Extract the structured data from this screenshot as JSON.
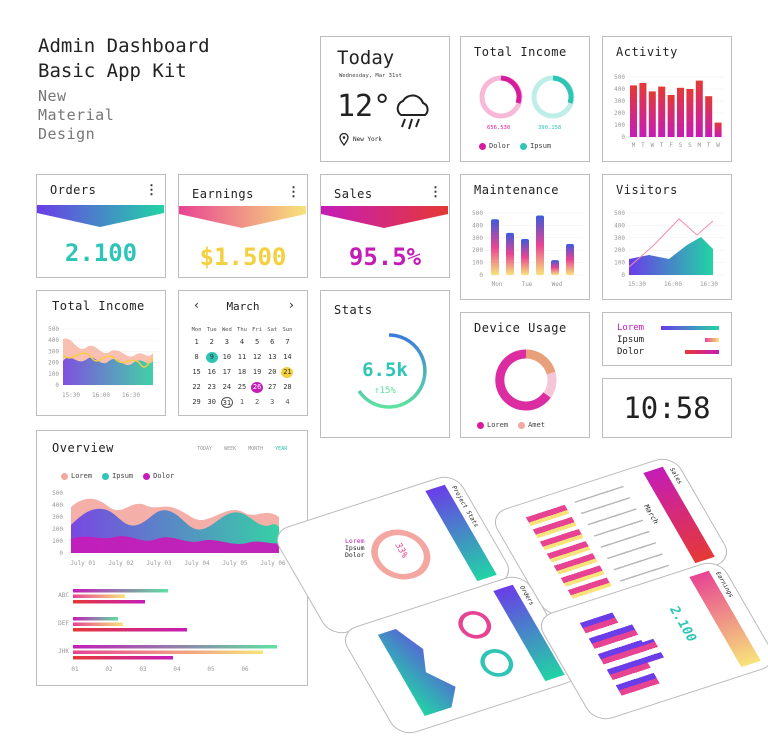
{
  "header": {
    "title_line1": "Admin Dashboard",
    "title_line2": "Basic App Kit",
    "sub_line1": "New",
    "sub_line2": "Material",
    "sub_line3": "Design"
  },
  "today": {
    "title": "Today",
    "date": "Wednesday, Mar 31st",
    "temp": "12°",
    "location": "New York"
  },
  "total_income_top": {
    "title": "Total Income",
    "value1": "656.530",
    "value2": "390.158",
    "legend": [
      "Dolor",
      "Ipsum"
    ]
  },
  "activity": {
    "title": "Activity",
    "y_ticks": [
      "500",
      "400",
      "300",
      "200",
      "100",
      "0"
    ],
    "days": [
      "M",
      "T",
      "W",
      "T",
      "F",
      "S",
      "S",
      "M",
      "T",
      "W"
    ],
    "values": [
      430,
      450,
      380,
      420,
      350,
      410,
      400,
      470,
      340,
      120
    ]
  },
  "orders": {
    "title": "Orders",
    "value": "2.100"
  },
  "earnings": {
    "title": "Earnings",
    "value": "$1.500"
  },
  "sales": {
    "title": "Sales",
    "value": "95.5%"
  },
  "maintenance": {
    "title": "Maintenance",
    "y_ticks": [
      "500",
      "400",
      "300",
      "200",
      "100",
      "0"
    ],
    "x_labels": [
      "Mon",
      "Tue",
      "Wed"
    ],
    "values": [
      450,
      340,
      290,
      480,
      120,
      250
    ]
  },
  "visitors": {
    "title": "Visitors",
    "y_ticks": [
      "500",
      "400",
      "300",
      "200",
      "100",
      "0"
    ],
    "x_labels": [
      "15:30",
      "16:00",
      "16:30"
    ]
  },
  "total_income_mid": {
    "title": "Total Income",
    "y_ticks": [
      "500",
      "400",
      "300",
      "200",
      "100",
      "0"
    ],
    "x_labels": [
      "15:30",
      "16:00",
      "16:30"
    ]
  },
  "calendar": {
    "month": "March",
    "weekdays": [
      "Mon",
      "Tue",
      "Wed",
      "Thu",
      "Fri",
      "Sat",
      "Sun"
    ],
    "days": [
      "1",
      "2",
      "3",
      "4",
      "5",
      "6",
      "7",
      "8",
      "9",
      "10",
      "11",
      "12",
      "13",
      "14",
      "15",
      "16",
      "17",
      "18",
      "19",
      "20",
      "21",
      "22",
      "23",
      "24",
      "25",
      "26",
      "27",
      "28",
      "29",
      "30",
      "31",
      "1",
      "2",
      "3",
      "4"
    ]
  },
  "stats": {
    "title": "Stats",
    "value": "6.5k",
    "percent": "15%"
  },
  "device_usage": {
    "title": "Device Usage",
    "legend": [
      "Lorem",
      "Amet"
    ]
  },
  "legend_card": {
    "items": [
      "Lorem",
      "Ipsum",
      "Dolor"
    ]
  },
  "clock": {
    "time": "10:58"
  },
  "overview": {
    "title": "Overview",
    "tabs": [
      "TODAY",
      "WEEK",
      "MONTH",
      "YEAR"
    ],
    "legend": [
      "Lorem",
      "Ipsum",
      "Dolor"
    ],
    "y_ticks": [
      "500",
      "400",
      "300",
      "200",
      "100",
      "0"
    ],
    "x_labels": [
      "July 01",
      "July 02",
      "July 03",
      "July 04",
      "July 05",
      "July 06"
    ],
    "bar_groups": [
      "ABC",
      "DEF",
      "JHK"
    ],
    "bar_x_ticks": [
      "01",
      "02",
      "03",
      "04",
      "05",
      "06"
    ]
  },
  "phones": {
    "p1_title": "Project Stats",
    "p1_percent": "33%",
    "p1_legend": [
      "Lorem",
      "Ipsum",
      "Dolor"
    ],
    "p2_title": "Sales",
    "p2_month": "March",
    "p3_title": "Orders",
    "p4_title": "Earnings",
    "p4_value": "2.100"
  },
  "colors": {
    "accent_magenta": "#d81b9c",
    "accent_teal": "#2ec4b6",
    "accent_yellow": "#f4d03f",
    "accent_red": "#e53935"
  }
}
